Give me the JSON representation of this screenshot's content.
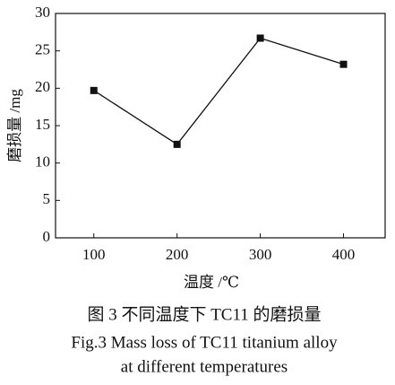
{
  "chart_data": {
    "type": "line",
    "x": [
      100,
      200,
      300,
      400
    ],
    "series": [
      {
        "color": "#111111",
        "values": [
          19.7,
          12.5,
          26.7,
          23.2
        ]
      }
    ],
    "xlim": [
      54,
      450
    ],
    "ylim": [
      0,
      30
    ],
    "xticks": [
      100,
      200,
      300,
      400
    ],
    "yticks": [
      0,
      5,
      10,
      15,
      20,
      25,
      30
    ],
    "xlabel": "温度 /℃",
    "ylabel": "磨损量 /mg",
    "caption": [
      "图 3  不同温度下 TC11 的磨损量",
      "Fig.3  Mass loss of TC11 titanium alloy",
      "at different temperatures"
    ]
  }
}
